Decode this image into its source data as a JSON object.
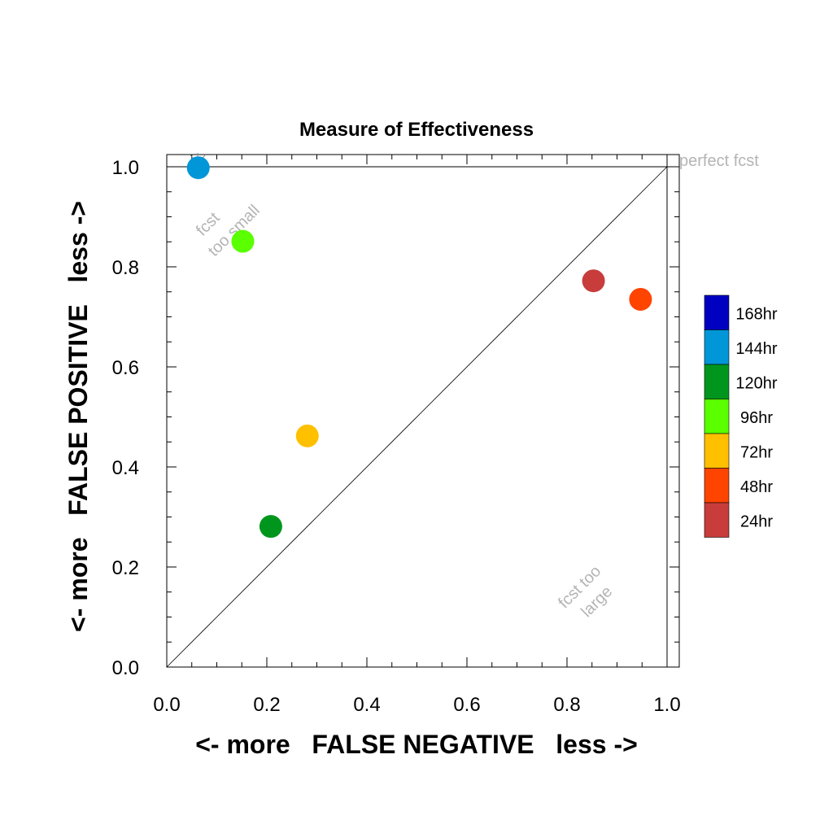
{
  "chart_data": {
    "type": "scatter",
    "title": "Measure of Effectiveness",
    "xlabel": "<- more   FALSE NEGATIVE   less ->",
    "ylabel": "<- more   FALSE POSITIVE   less ->",
    "xlim": [
      0,
      1
    ],
    "ylim": [
      0,
      1
    ],
    "x_ticks": [
      "0.0",
      "0.2",
      "0.4",
      "0.6",
      "0.8",
      "1.0"
    ],
    "y_ticks": [
      "0.0",
      "0.2",
      "0.4",
      "0.6",
      "0.8",
      "1.0"
    ],
    "grid": false,
    "reference_line": {
      "from": [
        0,
        0
      ],
      "to": [
        1,
        1
      ]
    },
    "annotations": {
      "perfect": "perfect fcst",
      "too_small_line1": "fcst",
      "too_small_line2": "too small",
      "too_large_line1": "fcst too",
      "too_large_line2": "large"
    },
    "legend": {
      "placement": "right",
      "entries": [
        {
          "label": "168hr",
          "color": "#0000c0"
        },
        {
          "label": "144hr",
          "color": "#0096d8"
        },
        {
          "label": "120hr",
          "color": "#00961e"
        },
        {
          "label": "96hr",
          "color": "#5aff00"
        },
        {
          "label": "72hr",
          "color": "#ffc000"
        },
        {
          "label": "48hr",
          "color": "#ff4400"
        },
        {
          "label": "24hr",
          "color": "#c83c3c"
        }
      ]
    },
    "points": [
      {
        "label": "24hr",
        "x": 0.853,
        "y": 0.772,
        "color": "#c83c3c"
      },
      {
        "label": "48hr",
        "x": 0.947,
        "y": 0.735,
        "color": "#ff4400"
      },
      {
        "label": "72hr",
        "x": 0.281,
        "y": 0.462,
        "color": "#ffc000"
      },
      {
        "label": "96hr",
        "x": 0.152,
        "y": 0.851,
        "color": "#5aff00"
      },
      {
        "label": "120hr",
        "x": 0.208,
        "y": 0.281,
        "color": "#00961e"
      },
      {
        "label": "144hr",
        "x": 0.063,
        "y": 0.998,
        "color": "#0096d8"
      }
    ]
  }
}
